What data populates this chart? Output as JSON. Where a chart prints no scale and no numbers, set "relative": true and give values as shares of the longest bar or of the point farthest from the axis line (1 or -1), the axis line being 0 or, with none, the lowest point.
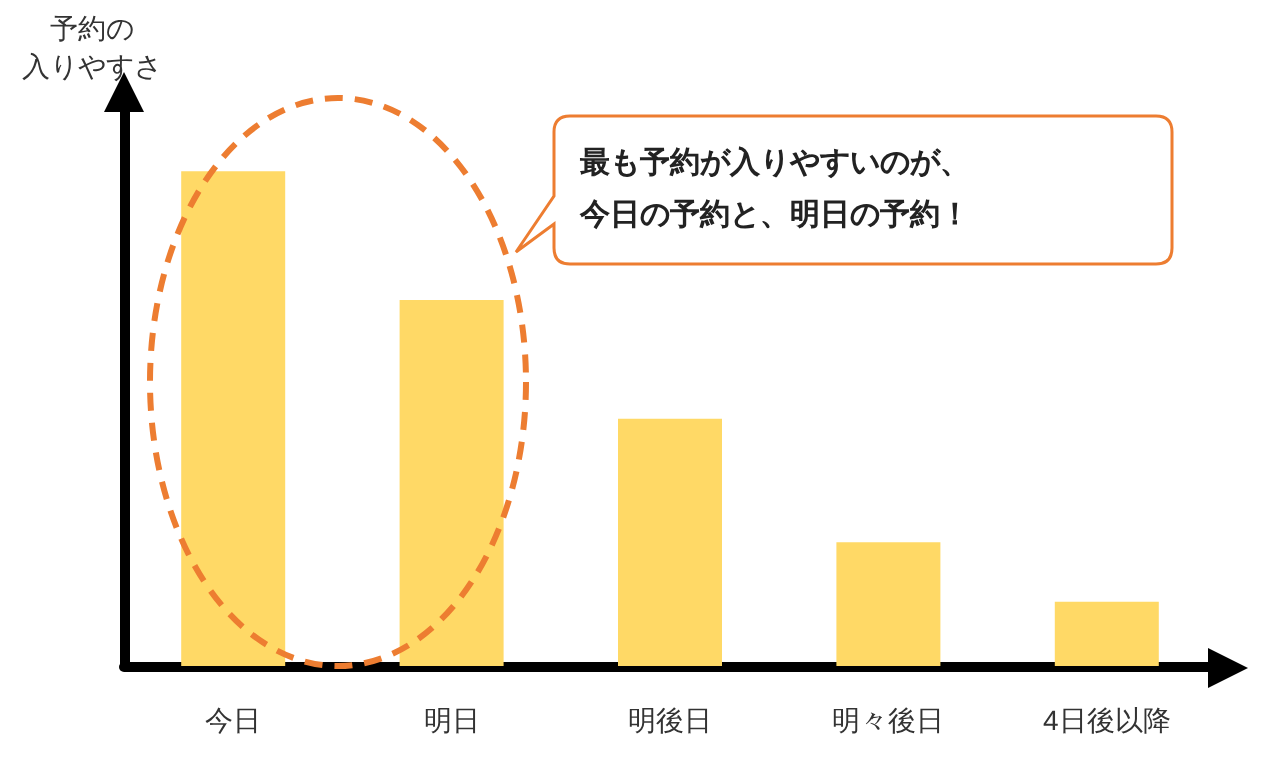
{
  "chart_data": {
    "type": "bar",
    "relative": true,
    "ylabel": "予約の入りやすさ",
    "categories": [
      "今日",
      "明日",
      "明後日",
      "明々後日",
      "4日後以降"
    ],
    "values": [
      1,
      0.74,
      0.5,
      0.25,
      0.13
    ],
    "color": "#ffd966",
    "annotations": [
      "最も予約が入りやすいのが、今日の予約と、明日の予約！"
    ],
    "grid": false
  }
}
